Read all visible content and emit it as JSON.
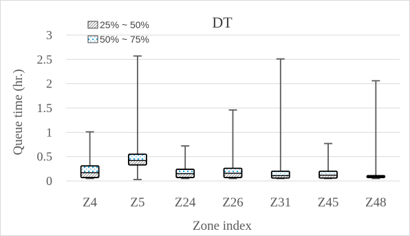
{
  "chart_data": {
    "type": "box",
    "title": "DT",
    "xlabel": "Zone index",
    "ylabel": "Queue time (hr.)",
    "ylim": [
      0,
      3
    ],
    "yticks": [
      "0",
      "0.5",
      "1",
      "1.5",
      "2",
      "2.5",
      "3"
    ],
    "grid": true,
    "legend_position": "top-left",
    "legend": [
      "25% ~ 50%",
      "50% ~ 75%"
    ],
    "categories": [
      "Z4",
      "Z5",
      "Z24",
      "Z26",
      "Z31",
      "Z45",
      "Z48"
    ],
    "boxes": [
      {
        "min": 0.05,
        "q1": 0.07,
        "median": 0.17,
        "q3": 0.31,
        "max": 1.01
      },
      {
        "min": 0.03,
        "q1": 0.33,
        "median": 0.42,
        "q3": 0.55,
        "max": 2.57
      },
      {
        "min": 0.05,
        "q1": 0.07,
        "median": 0.15,
        "q3": 0.24,
        "max": 0.72
      },
      {
        "min": 0.05,
        "q1": 0.07,
        "median": 0.16,
        "q3": 0.26,
        "max": 1.46
      },
      {
        "min": 0.05,
        "q1": 0.06,
        "median": 0.11,
        "q3": 0.2,
        "max": 2.51
      },
      {
        "min": 0.05,
        "q1": 0.06,
        "median": 0.12,
        "q3": 0.2,
        "max": 0.77
      },
      {
        "min": 0.05,
        "q1": 0.07,
        "median": 0.09,
        "q3": 0.11,
        "max": 2.06
      }
    ],
    "colors": {
      "box_edge": "#000000",
      "whisker": "#595959",
      "dots": "#29a3d6",
      "hatch": "#808080",
      "grid": "#d9d9d9",
      "text": "#595959"
    }
  }
}
